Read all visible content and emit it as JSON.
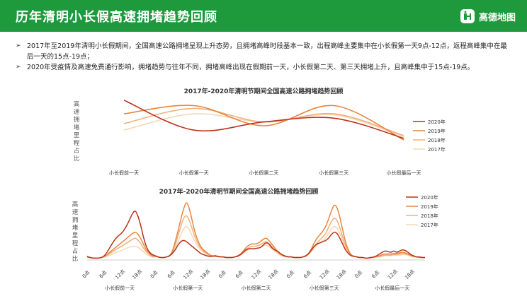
{
  "header": {
    "title": "历年清明小长假高速拥堵趋势回顾",
    "logo_text": "高德地图"
  },
  "bullets": [
    "2017年至2019年清明小长假期间，全国高速公路拥堵呈现上升态势，且拥堵高峰时段基本一致，出程高峰主要集中在小长假第一天9点-12点，返程高峰集中在最后一天的15点-19点；",
    "2020年受疫情及高速免费通行影响，拥堵趋势与往年不同，拥堵高峰出现在假期前一天，小长假第二天、第三天拥堵上升，且高峰集中于15点-19点。"
  ],
  "colors": {
    "header_bg": "#1e9a3c",
    "y2020": "#b8341b",
    "y2019": "#e8853f",
    "y2018": "#f2b07a",
    "y2017": "#f7d7b5"
  },
  "chart_data": [
    {
      "type": "line",
      "title": "2017年-2020年清明节期间全国高速公路拥堵趋势回顾",
      "ylabel": "高速拥堵里程占比",
      "categories": [
        "小长假前一天",
        "小长假第一天",
        "小长假第二天",
        "小长假第三天",
        "小长假最后一天"
      ],
      "ylim": [
        0,
        1
      ],
      "smooth": true,
      "legend_position": "right",
      "series": [
        {
          "name": "2020年",
          "color": "#b8341b",
          "values": [
            0.95,
            0.4,
            0.55,
            0.62,
            0.25
          ]
        },
        {
          "name": "2019年",
          "color": "#e8853f",
          "values": [
            0.7,
            0.85,
            0.48,
            0.85,
            0.22
          ]
        },
        {
          "name": "2018年",
          "color": "#f2b07a",
          "values": [
            0.52,
            0.8,
            0.55,
            0.7,
            0.3
          ]
        },
        {
          "name": "2017年",
          "color": "#f7d7b5",
          "values": [
            0.4,
            0.7,
            0.55,
            0.68,
            0.28
          ]
        }
      ]
    },
    {
      "type": "line",
      "title": "2017年-2020年清明节期间全国高速公路拥堵趋势回顾",
      "ylabel": "高速拥堵里程占比",
      "hour_ticks": [
        "0点",
        "6点",
        "12点",
        "18点"
      ],
      "day_labels": [
        "小长假前一天",
        "小长假第一天",
        "小长假第二天",
        "小长假第三天",
        "小长假最后一天"
      ],
      "ylim": [
        0,
        1
      ],
      "legend_position": "top-right",
      "series": [
        {
          "name": "2020年",
          "color": "#b8341b",
          "values": [
            0.05,
            0.03,
            0.02,
            0.02,
            0.02,
            0.03,
            0.06,
            0.12,
            0.2,
            0.28,
            0.35,
            0.4,
            0.44,
            0.5,
            0.58,
            0.68,
            0.78,
            0.82,
            0.72,
            0.55,
            0.35,
            0.2,
            0.12,
            0.08,
            0.06,
            0.04,
            0.03,
            0.03,
            0.04,
            0.06,
            0.1,
            0.16,
            0.24,
            0.3,
            0.32,
            0.3,
            0.26,
            0.22,
            0.18,
            0.14,
            0.1,
            0.08,
            0.06,
            0.05,
            0.05,
            0.06,
            0.05,
            0.04,
            0.04,
            0.03,
            0.03,
            0.03,
            0.04,
            0.05,
            0.08,
            0.12,
            0.16,
            0.18,
            0.18,
            0.18,
            0.19,
            0.2,
            0.24,
            0.28,
            0.26,
            0.2,
            0.16,
            0.14,
            0.1,
            0.07,
            0.05,
            0.04,
            0.04,
            0.03,
            0.03,
            0.03,
            0.04,
            0.06,
            0.1,
            0.16,
            0.22,
            0.26,
            0.28,
            0.3,
            0.32,
            0.36,
            0.42,
            0.46,
            0.44,
            0.36,
            0.26,
            0.16,
            0.1,
            0.06,
            0.05,
            0.04,
            0.03,
            0.03,
            0.02,
            0.02,
            0.03,
            0.04,
            0.06,
            0.09,
            0.12,
            0.14,
            0.13,
            0.12,
            0.14,
            0.12,
            0.14,
            0.16,
            0.15,
            0.12,
            0.08,
            0.06,
            0.04,
            0.04,
            0.03,
            0.03
          ]
        },
        {
          "name": "2019年",
          "color": "#e8853f",
          "values": [
            0.04,
            0.03,
            0.02,
            0.02,
            0.02,
            0.03,
            0.05,
            0.08,
            0.12,
            0.16,
            0.2,
            0.24,
            0.28,
            0.32,
            0.36,
            0.4,
            0.44,
            0.46,
            0.42,
            0.34,
            0.24,
            0.15,
            0.1,
            0.06,
            0.05,
            0.04,
            0.03,
            0.03,
            0.04,
            0.06,
            0.14,
            0.3,
            0.48,
            0.68,
            0.86,
            0.96,
            0.86,
            0.66,
            0.46,
            0.32,
            0.22,
            0.16,
            0.12,
            0.08,
            0.06,
            0.05,
            0.05,
            0.04,
            0.04,
            0.03,
            0.03,
            0.03,
            0.04,
            0.06,
            0.09,
            0.14,
            0.2,
            0.24,
            0.26,
            0.26,
            0.27,
            0.3,
            0.34,
            0.36,
            0.32,
            0.26,
            0.2,
            0.14,
            0.1,
            0.07,
            0.05,
            0.04,
            0.04,
            0.03,
            0.03,
            0.03,
            0.04,
            0.06,
            0.1,
            0.18,
            0.28,
            0.36,
            0.42,
            0.48,
            0.56,
            0.68,
            0.82,
            0.92,
            0.88,
            0.72,
            0.5,
            0.3,
            0.16,
            0.08,
            0.05,
            0.04,
            0.03,
            0.03,
            0.02,
            0.02,
            0.03,
            0.04,
            0.05,
            0.06,
            0.08,
            0.09,
            0.09,
            0.09,
            0.1,
            0.1,
            0.11,
            0.12,
            0.11,
            0.09,
            0.07,
            0.05,
            0.04,
            0.04,
            0.03,
            0.03
          ]
        },
        {
          "name": "2018年",
          "color": "#f2b07a",
          "values": [
            0.04,
            0.03,
            0.02,
            0.02,
            0.02,
            0.03,
            0.04,
            0.07,
            0.1,
            0.13,
            0.16,
            0.19,
            0.22,
            0.25,
            0.28,
            0.31,
            0.34,
            0.36,
            0.32,
            0.26,
            0.18,
            0.12,
            0.08,
            0.05,
            0.05,
            0.04,
            0.03,
            0.03,
            0.04,
            0.06,
            0.12,
            0.24,
            0.4,
            0.56,
            0.7,
            0.74,
            0.66,
            0.52,
            0.38,
            0.27,
            0.19,
            0.14,
            0.1,
            0.07,
            0.06,
            0.05,
            0.05,
            0.04,
            0.04,
            0.03,
            0.03,
            0.03,
            0.04,
            0.05,
            0.08,
            0.12,
            0.17,
            0.2,
            0.22,
            0.22,
            0.23,
            0.25,
            0.28,
            0.3,
            0.27,
            0.22,
            0.17,
            0.12,
            0.08,
            0.06,
            0.05,
            0.04,
            0.04,
            0.03,
            0.03,
            0.03,
            0.04,
            0.05,
            0.09,
            0.15,
            0.22,
            0.28,
            0.33,
            0.38,
            0.44,
            0.54,
            0.64,
            0.7,
            0.66,
            0.54,
            0.38,
            0.24,
            0.13,
            0.07,
            0.05,
            0.04,
            0.03,
            0.03,
            0.02,
            0.02,
            0.03,
            0.03,
            0.04,
            0.05,
            0.06,
            0.07,
            0.07,
            0.07,
            0.08,
            0.08,
            0.09,
            0.1,
            0.09,
            0.08,
            0.06,
            0.05,
            0.04,
            0.03,
            0.03,
            0.03
          ]
        },
        {
          "name": "2017年",
          "color": "#f7d7b5",
          "values": [
            0.03,
            0.03,
            0.02,
            0.02,
            0.02,
            0.03,
            0.04,
            0.05,
            0.07,
            0.09,
            0.11,
            0.13,
            0.15,
            0.17,
            0.19,
            0.21,
            0.22,
            0.22,
            0.2,
            0.16,
            0.12,
            0.08,
            0.06,
            0.04,
            0.04,
            0.04,
            0.03,
            0.03,
            0.04,
            0.05,
            0.1,
            0.18,
            0.3,
            0.42,
            0.52,
            0.56,
            0.5,
            0.4,
            0.3,
            0.22,
            0.16,
            0.12,
            0.09,
            0.07,
            0.05,
            0.05,
            0.04,
            0.04,
            0.04,
            0.03,
            0.03,
            0.03,
            0.04,
            0.05,
            0.07,
            0.1,
            0.14,
            0.17,
            0.18,
            0.18,
            0.19,
            0.21,
            0.23,
            0.24,
            0.22,
            0.18,
            0.14,
            0.1,
            0.07,
            0.05,
            0.04,
            0.04,
            0.04,
            0.03,
            0.03,
            0.03,
            0.04,
            0.05,
            0.08,
            0.13,
            0.19,
            0.24,
            0.28,
            0.32,
            0.37,
            0.44,
            0.52,
            0.56,
            0.53,
            0.44,
            0.32,
            0.2,
            0.11,
            0.06,
            0.05,
            0.04,
            0.03,
            0.03,
            0.02,
            0.02,
            0.03,
            0.03,
            0.04,
            0.04,
            0.05,
            0.06,
            0.06,
            0.06,
            0.07,
            0.07,
            0.07,
            0.08,
            0.08,
            0.07,
            0.05,
            0.04,
            0.04,
            0.03,
            0.03,
            0.03
          ]
        }
      ]
    }
  ]
}
